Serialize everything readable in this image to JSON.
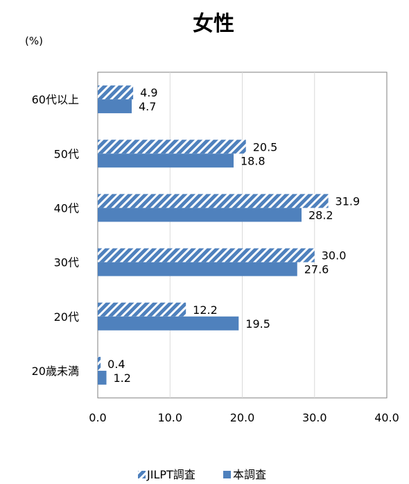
{
  "chart_data": {
    "type": "bar",
    "orientation": "horizontal",
    "title": "女性",
    "unit_label": "(%)",
    "categories": [
      "60代以上",
      "50代",
      "40代",
      "30代",
      "20代",
      "20歳未満"
    ],
    "series": [
      {
        "name": "JILPT調査",
        "values": [
          4.9,
          20.5,
          31.9,
          30.0,
          12.2,
          0.4
        ],
        "color": "#4f81bd",
        "pattern": "diagonal-stripes"
      },
      {
        "name": "本調査",
        "values": [
          4.7,
          18.8,
          28.2,
          27.6,
          19.5,
          1.2
        ],
        "color": "#4f81bd",
        "pattern": "solid"
      }
    ],
    "xlim": [
      0,
      40
    ],
    "xticks": [
      "0.0",
      "10.0",
      "20.0",
      "30.0",
      "40.0"
    ],
    "grid": true,
    "legend_position": "bottom"
  }
}
